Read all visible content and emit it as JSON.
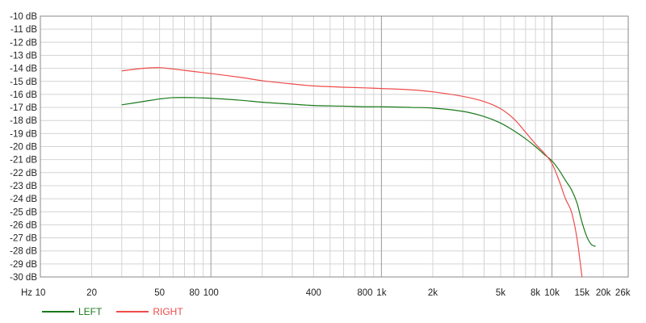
{
  "chart_data": {
    "type": "line",
    "xscale": "log",
    "xlim": [
      10,
      28000
    ],
    "ylim": [
      -30,
      -10
    ],
    "grid": true,
    "legend_position": "bottom-left",
    "x_unit_label": "Hz",
    "x_tick_labels": [
      {
        "value": 10,
        "label": "10"
      },
      {
        "value": 20,
        "label": "20"
      },
      {
        "value": 50,
        "label": "50"
      },
      {
        "value": 80,
        "label": "80"
      },
      {
        "value": 100,
        "label": "100"
      },
      {
        "value": 400,
        "label": "400"
      },
      {
        "value": 800,
        "label": "800"
      },
      {
        "value": 1000,
        "label": "1k"
      },
      {
        "value": 2000,
        "label": "2k"
      },
      {
        "value": 5000,
        "label": "5k"
      },
      {
        "value": 8000,
        "label": "8k"
      },
      {
        "value": 10000,
        "label": "10k"
      },
      {
        "value": 15000,
        "label": "15k"
      },
      {
        "value": 20000,
        "label": "20k"
      },
      {
        "value": 26000,
        "label": "26k"
      }
    ],
    "y_tick_labels": [
      {
        "value": -10,
        "label": "-10 dB"
      },
      {
        "value": -11,
        "label": "-11 dB"
      },
      {
        "value": -12,
        "label": "-12 dB"
      },
      {
        "value": -13,
        "label": "-13 dB"
      },
      {
        "value": -14,
        "label": "-14 dB"
      },
      {
        "value": -15,
        "label": "-15 dB"
      },
      {
        "value": -16,
        "label": "-16 dB"
      },
      {
        "value": -17,
        "label": "-17 dB"
      },
      {
        "value": -18,
        "label": "-18 dB"
      },
      {
        "value": -19,
        "label": "-19 dB"
      },
      {
        "value": -20,
        "label": "-20 dB"
      },
      {
        "value": -21,
        "label": "-21 dB"
      },
      {
        "value": -22,
        "label": "-22 dB"
      },
      {
        "value": -23,
        "label": "-23 dB"
      },
      {
        "value": -24,
        "label": "-24 dB"
      },
      {
        "value": -25,
        "label": "-25 dB"
      },
      {
        "value": -26,
        "label": "-26 dB"
      },
      {
        "value": -27,
        "label": "-27 dB"
      },
      {
        "value": -28,
        "label": "-28 dB"
      },
      {
        "value": -29,
        "label": "-29 dB"
      },
      {
        "value": -30,
        "label": "-30 dB"
      }
    ],
    "series": [
      {
        "name": "LEFT",
        "color": "#1a7a1a",
        "points": [
          [
            30,
            -16.8
          ],
          [
            40,
            -16.55
          ],
          [
            50,
            -16.35
          ],
          [
            60,
            -16.25
          ],
          [
            80,
            -16.25
          ],
          [
            100,
            -16.3
          ],
          [
            150,
            -16.45
          ],
          [
            200,
            -16.6
          ],
          [
            300,
            -16.75
          ],
          [
            400,
            -16.85
          ],
          [
            600,
            -16.9
          ],
          [
            800,
            -16.95
          ],
          [
            1000,
            -16.95
          ],
          [
            1500,
            -17.0
          ],
          [
            2000,
            -17.05
          ],
          [
            3000,
            -17.3
          ],
          [
            4000,
            -17.7
          ],
          [
            5000,
            -18.2
          ],
          [
            6000,
            -18.8
          ],
          [
            7000,
            -19.4
          ],
          [
            8000,
            -20.0
          ],
          [
            9000,
            -20.6
          ],
          [
            10000,
            -21.1
          ],
          [
            11000,
            -21.8
          ],
          [
            12000,
            -22.6
          ],
          [
            13000,
            -23.3
          ],
          [
            14000,
            -24.3
          ],
          [
            15000,
            -25.8
          ],
          [
            16000,
            -26.9
          ],
          [
            17000,
            -27.5
          ],
          [
            18000,
            -27.65
          ]
        ]
      },
      {
        "name": "RIGHT",
        "color": "#ef4b4b",
        "points": [
          [
            30,
            -14.2
          ],
          [
            40,
            -14.0
          ],
          [
            50,
            -13.95
          ],
          [
            60,
            -14.05
          ],
          [
            80,
            -14.25
          ],
          [
            100,
            -14.4
          ],
          [
            150,
            -14.7
          ],
          [
            200,
            -14.95
          ],
          [
            300,
            -15.2
          ],
          [
            400,
            -15.35
          ],
          [
            600,
            -15.45
          ],
          [
            800,
            -15.5
          ],
          [
            1000,
            -15.55
          ],
          [
            1500,
            -15.65
          ],
          [
            2000,
            -15.8
          ],
          [
            3000,
            -16.15
          ],
          [
            4000,
            -16.55
          ],
          [
            5000,
            -17.1
          ],
          [
            6000,
            -17.9
          ],
          [
            7000,
            -18.9
          ],
          [
            8000,
            -19.8
          ],
          [
            9000,
            -20.5
          ],
          [
            10000,
            -21.3
          ],
          [
            11000,
            -22.6
          ],
          [
            12000,
            -24.0
          ],
          [
            13000,
            -25.0
          ],
          [
            14000,
            -27.0
          ],
          [
            15000,
            -30.0
          ]
        ]
      }
    ]
  }
}
